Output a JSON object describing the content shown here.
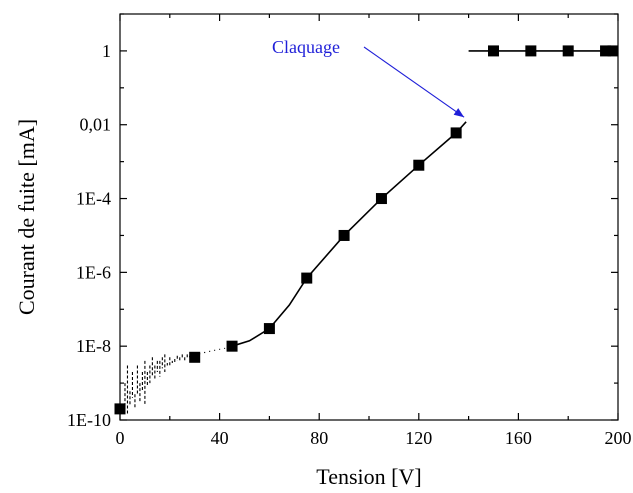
{
  "chart_data": {
    "type": "scatter",
    "title": "",
    "xlabel": "Tension [V]",
    "ylabel": "Courant de fuite [mA]",
    "xlim": [
      0,
      200
    ],
    "ylim": [
      1e-10,
      10
    ],
    "yscale": "log",
    "x_ticks": [
      0,
      40,
      80,
      120,
      160,
      200
    ],
    "x_tick_labels": [
      "0",
      "40",
      "80",
      "120",
      "160",
      "200"
    ],
    "y_ticks": [
      1e-10,
      1e-08,
      1e-06,
      0.0001,
      0.01,
      1
    ],
    "y_tick_labels": [
      "1E-10",
      "1E-8",
      "1E-6",
      "1E-4",
      "0,01",
      "1"
    ],
    "grid": false,
    "annotation": {
      "text": "Claquage",
      "points_to": [
        139,
        0.011
      ],
      "color": "#1f1fd8"
    },
    "marker_series": {
      "x": [
        0,
        30,
        45,
        60,
        75,
        90,
        105,
        120,
        135,
        150,
        165,
        180,
        195,
        198
      ],
      "y": [
        2e-10,
        5e-09,
        1e-08,
        3e-08,
        7e-07,
        1e-05,
        0.0001,
        0.0008,
        0.006,
        1,
        1,
        1,
        1,
        1
      ]
    },
    "curve_series": {
      "x": [
        45,
        52,
        60,
        68,
        75,
        90,
        105,
        120,
        135,
        139
      ],
      "y": [
        1e-08,
        1.4e-08,
        3e-08,
        1.3e-07,
        7e-07,
        1e-05,
        0.0001,
        0.0008,
        0.006,
        0.012
      ]
    },
    "saturation_line": {
      "x": [
        140,
        200
      ],
      "y": [
        1,
        1
      ]
    },
    "noise_series": {
      "x": [
        2,
        3,
        4,
        5,
        6,
        7,
        8,
        9,
        10,
        11,
        12,
        13,
        14,
        15,
        16,
        17,
        18,
        19,
        20,
        21,
        22,
        23,
        24,
        25,
        26,
        27,
        28,
        29,
        30,
        32,
        34,
        36,
        38,
        40,
        42,
        44
      ],
      "y_top": [
        1e-09,
        3e-09,
        6e-10,
        2e-09,
        5e-10,
        3e-09,
        1e-09,
        2e-09,
        4e-09,
        2e-09,
        3e-09,
        5e-09,
        3e-09,
        4e-09,
        4e-09,
        5e-09,
        6e-09,
        3.5e-09,
        5e-09,
        4e-09,
        4.5e-09,
        5.5e-09,
        5e-09,
        6e-09,
        5e-09,
        6e-09,
        5.5e-09,
        6e-09,
        6e-09,
        6.5e-09,
        7e-09,
        7.5e-09,
        8e-09,
        8.5e-09,
        9e-09,
        9.5e-09
      ],
      "y_bottom": [
        2e-10,
        1.5e-10,
        2.5e-10,
        4e-10,
        2e-10,
        5e-10,
        3e-10,
        6e-10,
        2.5e-10,
        8e-10,
        1e-09,
        1.5e-09,
        1.2e-09,
        2e-09,
        1.5e-09,
        2.5e-09,
        2e-09,
        3e-09,
        3e-09,
        3.5e-09,
        3.5e-09,
        4e-09,
        4e-09,
        4.5e-09,
        4e-09,
        5e-09,
        5e-09,
        5e-09,
        5.5e-09,
        6e-09,
        6.5e-09,
        7e-09,
        7.5e-09,
        8e-09,
        8.5e-09,
        9e-09
      ]
    }
  }
}
